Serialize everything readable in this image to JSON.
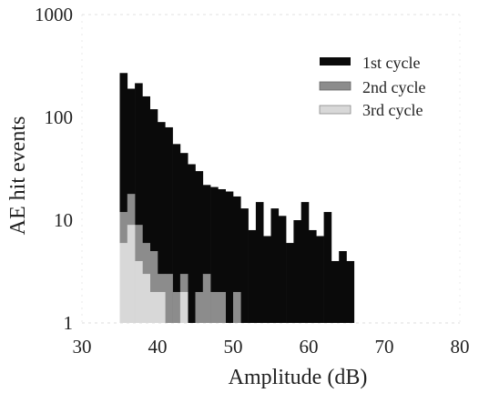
{
  "chart_data": {
    "type": "bar",
    "title": "",
    "xlabel": "Amplitude (dB)",
    "ylabel": "AE hit events",
    "xlim": [
      30,
      80
    ],
    "ylim": [
      1,
      1000
    ],
    "yscale": "log",
    "grid": false,
    "legend_position": "top-right",
    "bin_width": 1,
    "x_ticks": [
      "30",
      "40",
      "50",
      "60",
      "70",
      "80"
    ],
    "y_ticks": [
      "1",
      "10",
      "100",
      "1000"
    ],
    "x_tick_values": [
      30,
      40,
      50,
      60,
      70,
      80
    ],
    "y_tick_values": [
      1,
      10,
      100,
      1000
    ],
    "bins": [
      35,
      36,
      37,
      38,
      39,
      40,
      41,
      42,
      43,
      44,
      45,
      46,
      47,
      48,
      49,
      50,
      51,
      52,
      53,
      54,
      55,
      56,
      57,
      58,
      59,
      60,
      61,
      62,
      63,
      64,
      65
    ],
    "series": [
      {
        "name": "1st cycle",
        "color": "#0a0a0a",
        "values": [
          270,
          190,
          215,
          160,
          120,
          90,
          80,
          55,
          45,
          35,
          30,
          22,
          21,
          20,
          19,
          17,
          13,
          8,
          15,
          7,
          13,
          11,
          6,
          10,
          15,
          8,
          7,
          12,
          4,
          5,
          4
        ]
      },
      {
        "name": "2nd cycle",
        "color": "#8c8c8c",
        "values": [
          12,
          18,
          9,
          6,
          5,
          3,
          3,
          2,
          3,
          1,
          2,
          3,
          2,
          2,
          1,
          2,
          1,
          1,
          1,
          1,
          1,
          1,
          1,
          1,
          1,
          1,
          1,
          1,
          1,
          1,
          1
        ]
      },
      {
        "name": "3rd cycle",
        "color": "#d8d8d8",
        "values": [
          6,
          9,
          4,
          3,
          2,
          2,
          1,
          1,
          2,
          1,
          1,
          1,
          1,
          1,
          1,
          1,
          1,
          1,
          1,
          1,
          1,
          1,
          1,
          1,
          1,
          1,
          1,
          1,
          1,
          1,
          1
        ]
      }
    ]
  }
}
